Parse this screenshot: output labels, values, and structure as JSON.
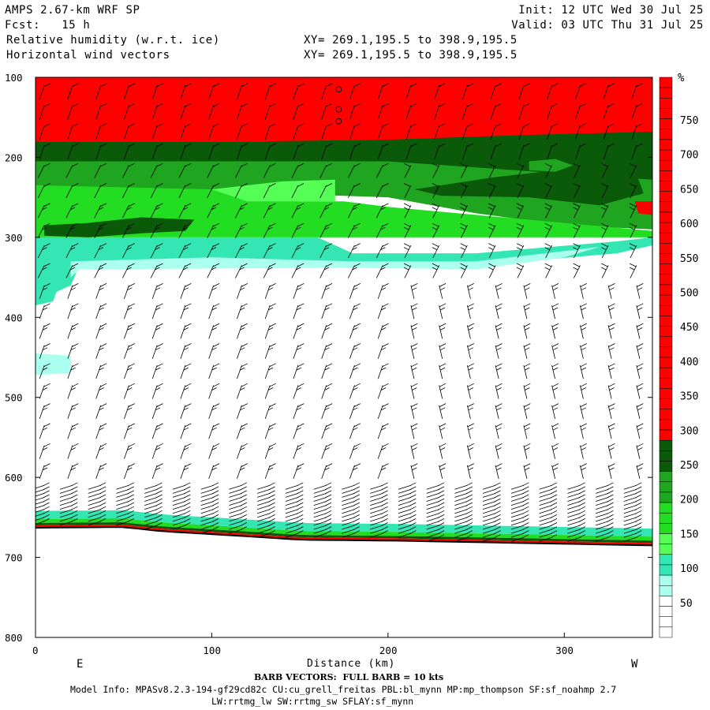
{
  "header": {
    "model": "AMPS 2.67-km WRF SP",
    "init": "Init: 12 UTC Wed 30 Jul 25",
    "fcst": "Fcst:   15 h",
    "valid": "Valid: 03 UTC Thu 31 Jul 25",
    "field1": "Relative humidity (w.r.t. ice)",
    "field2": "Horizontal wind vectors",
    "xy1": "XY= 269.1,195.5 to 398.9,195.5",
    "xy2": "XY= 269.1,195.5 to 398.9,195.5"
  },
  "chart_data": {
    "type": "heatmap",
    "title": "Relative humidity (w.r.t. ice)",
    "xlabel": "Distance (km)",
    "ylabel": "",
    "xlim": [
      0,
      350
    ],
    "ylim": [
      800,
      100
    ],
    "xticks": [
      0,
      100,
      200,
      300
    ],
    "yticks": [
      100,
      200,
      300,
      400,
      500,
      600,
      700,
      800
    ],
    "x_end_labels": {
      "left": "E",
      "right": "W"
    },
    "colorbar": {
      "unit": "%",
      "levels": [
        750,
        700,
        650,
        600,
        550,
        500,
        450,
        400,
        350,
        300,
        250,
        200,
        150,
        100,
        50
      ],
      "colors": {
        "red": "#ff0000",
        "dark_green": "#0a5a0a",
        "green": "#1fa51f",
        "bright_green": "#22dd22",
        "light_green": "#55ff55",
        "teal": "#33e6b3",
        "light_teal": "#aaffee",
        "white": "#ffffff"
      }
    },
    "bands": [
      {
        "name": "red layer",
        "p_top": 100,
        "p_bottom": 180
      },
      {
        "name": "dark green band",
        "p_top": 180,
        "p_bottom": 205
      },
      {
        "name": "green band",
        "p_top": 205,
        "p_bottom": 235
      },
      {
        "name": "bright green band",
        "p_top": 235,
        "p_bottom": 300
      },
      {
        "name": "teal band",
        "p_top": 300,
        "p_bottom": 330
      }
    ],
    "surface_pressure": [
      {
        "x": 0,
        "p": 662
      },
      {
        "x": 50,
        "p": 661
      },
      {
        "x": 70,
        "p": 666
      },
      {
        "x": 100,
        "p": 670
      },
      {
        "x": 130,
        "p": 674
      },
      {
        "x": 150,
        "p": 677
      },
      {
        "x": 200,
        "p": 678
      },
      {
        "x": 250,
        "p": 680
      },
      {
        "x": 300,
        "p": 682
      },
      {
        "x": 350,
        "p": 684
      }
    ],
    "barb_columns_x": [
      5,
      21,
      37,
      53,
      69,
      85,
      101,
      117,
      133,
      149,
      165,
      181,
      197,
      213,
      229,
      245,
      261,
      277,
      293,
      309,
      325,
      341
    ]
  },
  "footer": {
    "barb_note": "BARB VECTORS:  FULL BARB = 10 kts",
    "model_info": "Model Info: MPASv8.2.3-194-gf29cd82c CU:cu_grell_freitas PBL:bl_mynn MP:mp_thompson SF:sf_noahmp 2.7",
    "model_info2": "LW:rrtmg_lw SW:rrtmg_sw SFLAY:sf_mynn"
  }
}
